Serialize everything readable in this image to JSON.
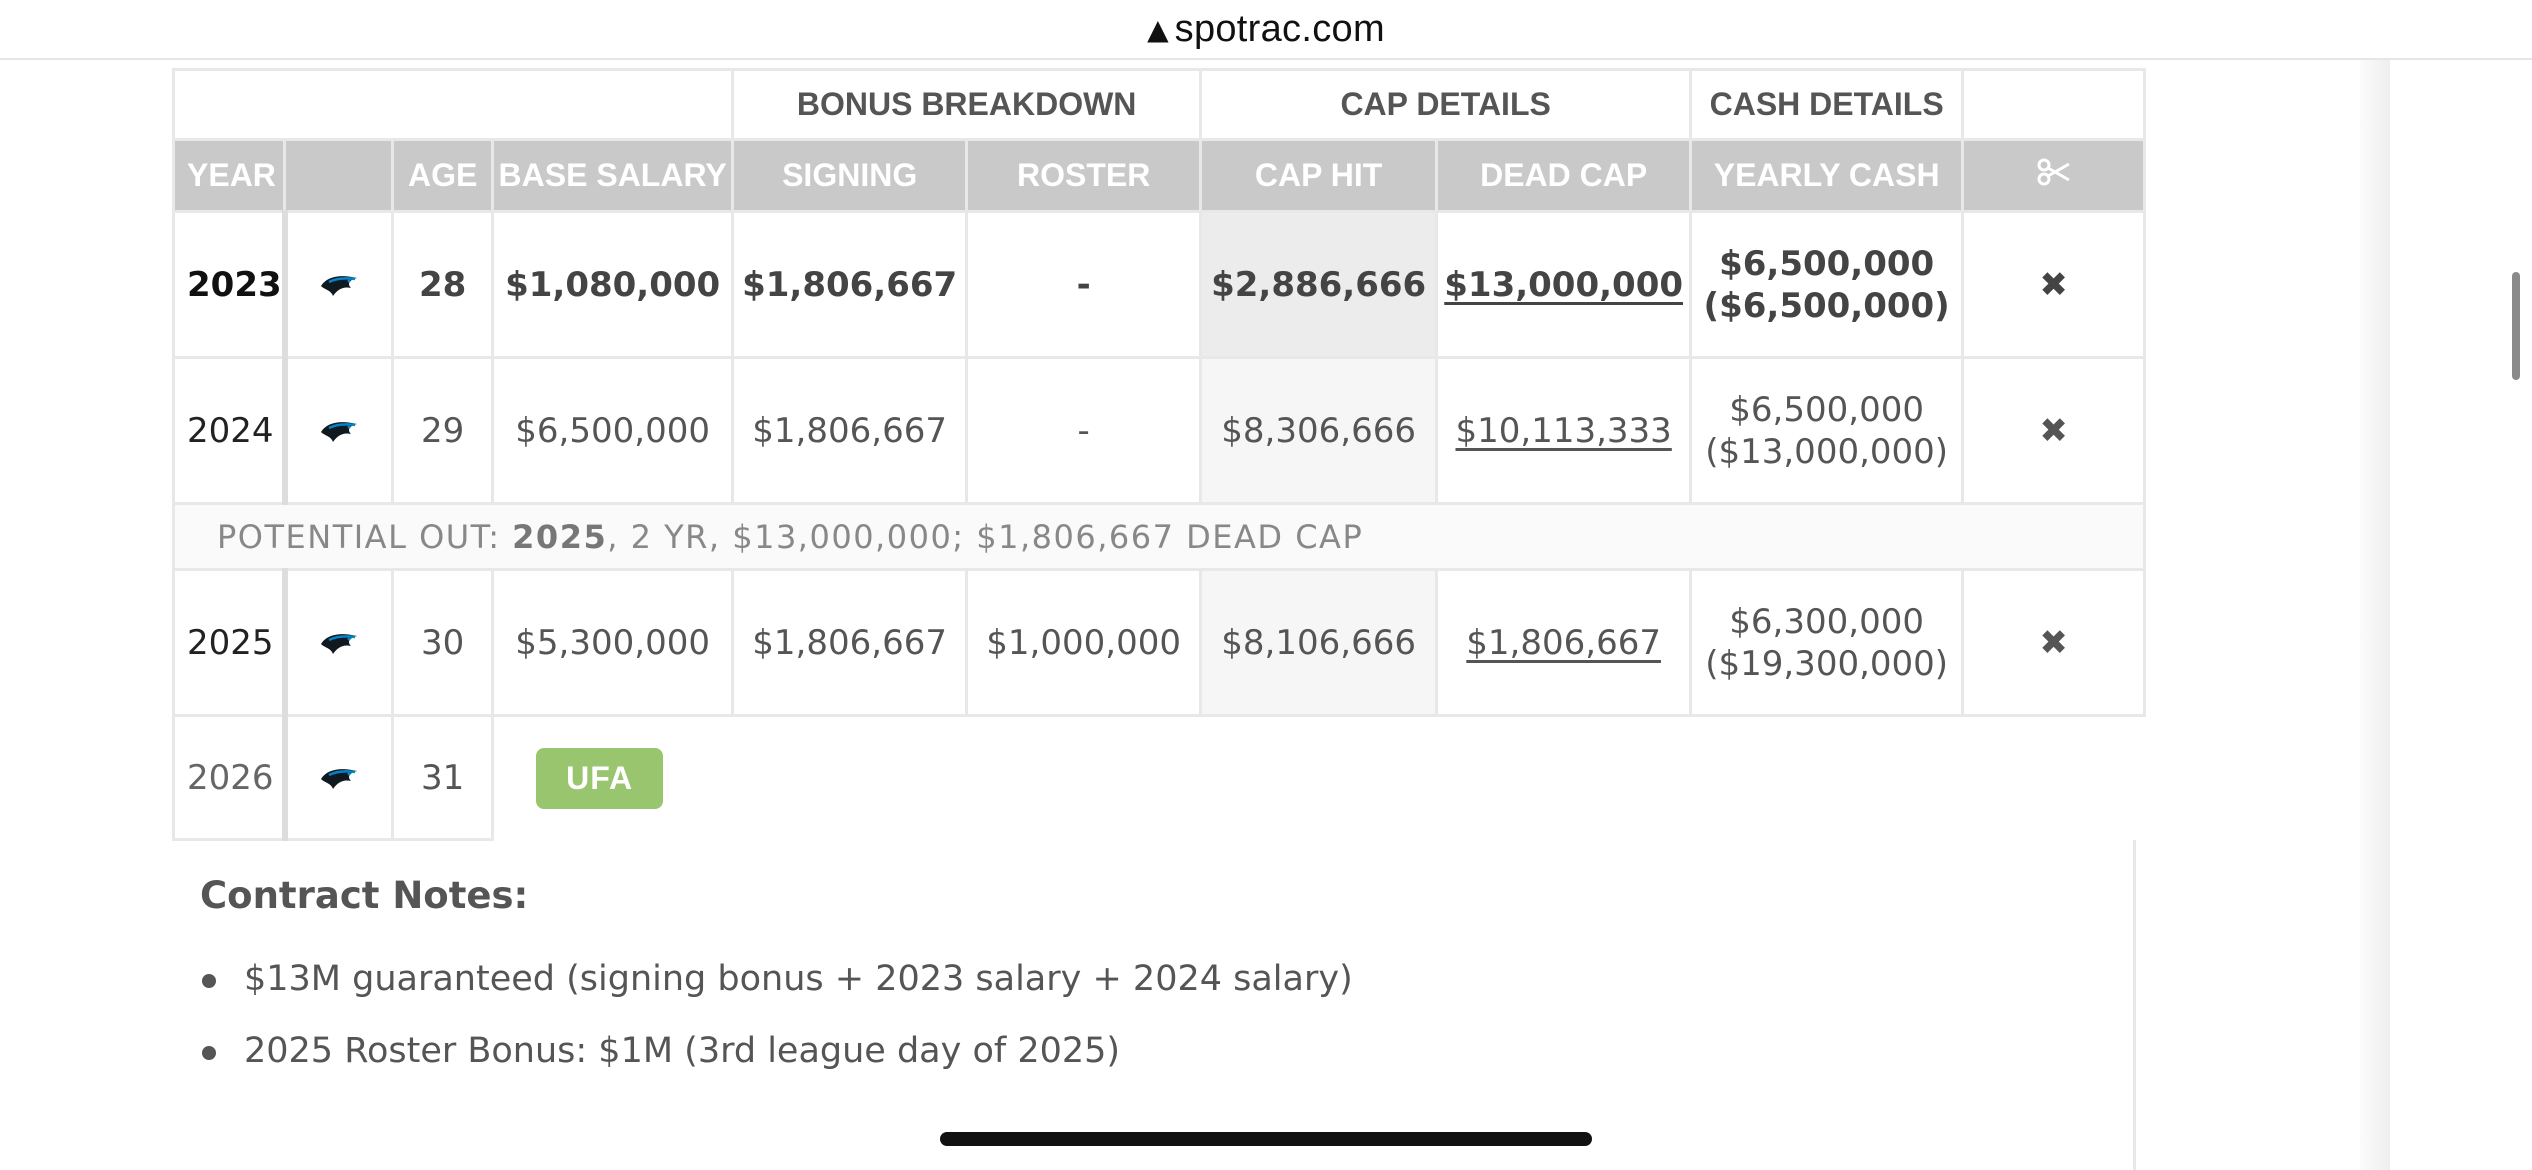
{
  "browser": {
    "url": "spotrac.com",
    "lock_icon": "warning-lock-icon"
  },
  "table": {
    "group_headers": {
      "bonus": "BONUS BREAKDOWN",
      "cap": "CAP DETAILS",
      "cash": "CASH DETAILS"
    },
    "headers": {
      "year": "YEAR",
      "age": "AGE",
      "base_salary": "BASE SALARY",
      "signing": "SIGNING",
      "roster": "ROSTER",
      "cap_hit": "CAP HIT",
      "dead_cap": "DEAD CAP",
      "yearly_cash": "YEARLY CASH",
      "cut_icon": "scissors-icon"
    },
    "rows": [
      {
        "year": "2023",
        "age": "28",
        "base_salary": "$1,080,000",
        "signing": "$1,806,667",
        "roster": "-",
        "cap_hit": "$2,886,666",
        "dead_cap": "$13,000,000",
        "cash": "$6,500,000",
        "cash_total": "($6,500,000)",
        "release": "✖"
      },
      {
        "year": "2024",
        "age": "29",
        "base_salary": "$6,500,000",
        "signing": "$1,806,667",
        "roster": "-",
        "cap_hit": "$8,306,666",
        "dead_cap": "$10,113,333",
        "cash": "$6,500,000",
        "cash_total": "($13,000,000)",
        "release": "✖"
      },
      {
        "year": "2025",
        "age": "30",
        "base_salary": "$5,300,000",
        "signing": "$1,806,667",
        "roster": "$1,000,000",
        "cap_hit": "$8,106,666",
        "dead_cap": "$1,806,667",
        "cash": "$6,300,000",
        "cash_total": "($19,300,000)",
        "release": "✖"
      }
    ],
    "potential_out": {
      "prefix": "POTENTIAL OUT: ",
      "year": "2025",
      "rest": ", 2 YR, $13,000,000; $1,806,667 DEAD CAP"
    },
    "ufa_row": {
      "year": "2026",
      "age": "31",
      "badge": "UFA"
    },
    "team_logo": "panthers-logo-icon"
  },
  "notes": {
    "title": "Contract Notes:",
    "items": [
      "$13M guaranteed (signing bonus + 2023 salary + 2024 salary)",
      "2025 Roster Bonus: $1M (3rd league day of 2025)"
    ]
  },
  "colors": {
    "header_bg": "#c9c9c9",
    "release_x": "#c0393b",
    "ufa_badge": "#9ac56f"
  }
}
